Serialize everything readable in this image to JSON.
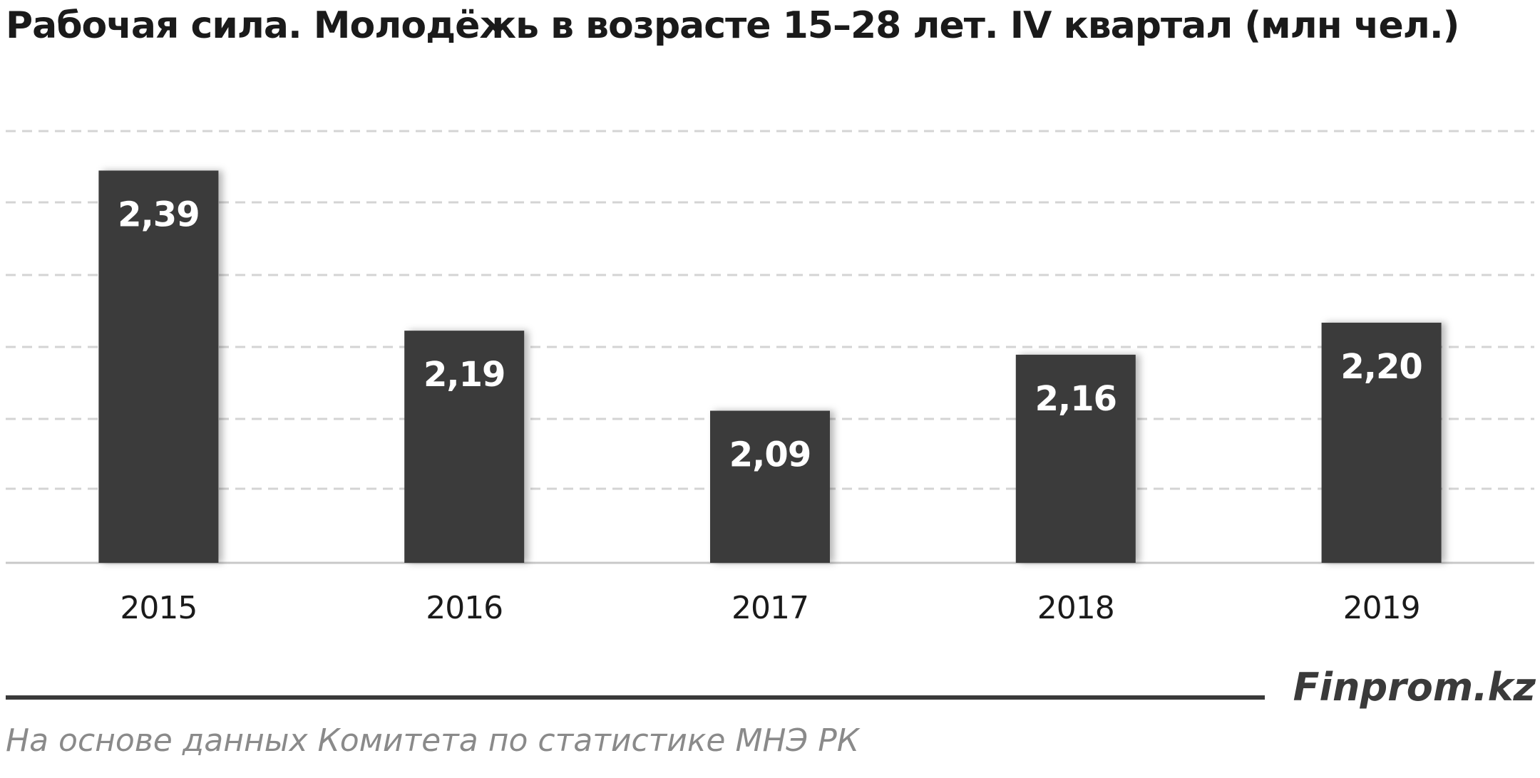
{
  "chart_data": {
    "type": "bar",
    "title": "Рабочая сила. Молодёжь в возрасте 15–28  лет. IV квартал (млн чел.)",
    "categories": [
      "2015",
      "2016",
      "2017",
      "2018",
      "2019"
    ],
    "values": [
      2.39,
      2.19,
      2.09,
      2.16,
      2.2
    ],
    "value_labels": [
      "2,39",
      "2,19",
      "2,09",
      "2,16",
      "2,20"
    ],
    "ylim": [
      1.9,
      2.45
    ],
    "grid": true,
    "bar_color": "#3a3a3a",
    "label_color": "#ffffff"
  },
  "footer": {
    "brand": "Finprom.kz",
    "source": "На основе данных  Комитета по статистике МНЭ РК"
  }
}
